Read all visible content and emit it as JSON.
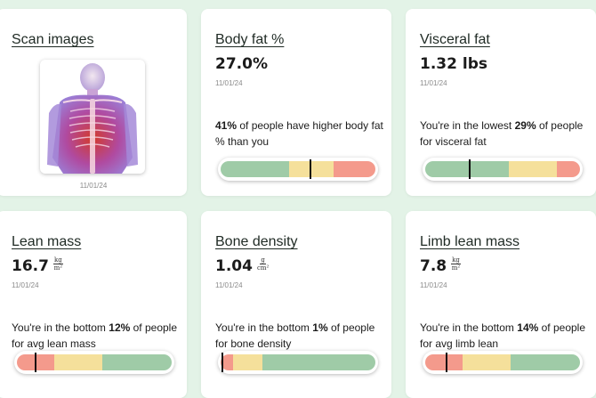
{
  "scan": {
    "title": "Scan images",
    "date": "11/01/24"
  },
  "cards": [
    {
      "title": "Body fat %",
      "value": "27.0%",
      "date": "11/01/24",
      "desc_pre": "",
      "desc_bold": "41%",
      "desc_post": " of people have higher body fat % than you",
      "marker": 0.58,
      "segments": [
        {
          "color": "#9fcba7",
          "frac": 0.44
        },
        {
          "color": "#f5e09b",
          "frac": 0.29
        },
        {
          "color": "#f49a8c",
          "frac": 0.27
        }
      ]
    },
    {
      "title": "Visceral fat",
      "value": "1.32 lbs",
      "date": "11/01/24",
      "desc_pre": "You're in the lowest ",
      "desc_bold": "29%",
      "desc_post": " of people for visceral fat",
      "marker": 0.29,
      "segments": [
        {
          "color": "#9fcba7",
          "frac": 0.54
        },
        {
          "color": "#f5e09b",
          "frac": 0.31
        },
        {
          "color": "#f49a8c",
          "frac": 0.15
        }
      ]
    },
    {
      "title": "Lean mass",
      "value": "16.7",
      "unit_num": "kg",
      "unit_den": "m²",
      "date": "11/01/24",
      "desc_pre": "You're in the bottom ",
      "desc_bold": "12%",
      "desc_post": " of people for avg lean mass",
      "marker": 0.12,
      "segments": [
        {
          "color": "#f49a8c",
          "frac": 0.24
        },
        {
          "color": "#f5e09b",
          "frac": 0.31
        },
        {
          "color": "#9fcba7",
          "frac": 0.45
        }
      ]
    },
    {
      "title": "Bone density",
      "value": "1.04",
      "unit_num": "g",
      "unit_den": "cm²",
      "date": "11/01/24",
      "desc_pre": "You're in the bottom ",
      "desc_bold": "1%",
      "desc_post": " of people for bone density",
      "marker": 0.01,
      "segments": [
        {
          "color": "#f49a8c",
          "frac": 0.08
        },
        {
          "color": "#f5e09b",
          "frac": 0.19
        },
        {
          "color": "#9fcba7",
          "frac": 0.73
        }
      ]
    },
    {
      "title": "Limb lean mass",
      "value": "7.8",
      "unit_num": "kg",
      "unit_den": "m²",
      "date": "11/01/24",
      "desc_pre": "You're in the bottom ",
      "desc_bold": "14%",
      "desc_post": " of people for avg limb lean",
      "marker": 0.14,
      "segments": [
        {
          "color": "#f49a8c",
          "frac": 0.24
        },
        {
          "color": "#f5e09b",
          "frac": 0.31
        },
        {
          "color": "#9fcba7",
          "frac": 0.45
        }
      ]
    }
  ]
}
